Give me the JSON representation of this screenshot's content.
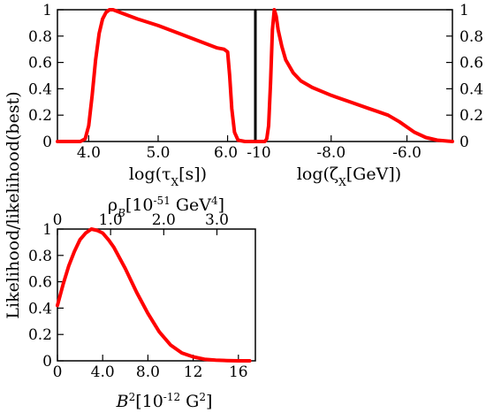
{
  "chart_data": [
    {
      "id": "tau",
      "type": "line",
      "xlabel": "log(τX[s])",
      "ylabel": "Likelihood/likelihood(best)",
      "xlim": [
        3.55,
        6.4
      ],
      "ylim": [
        0,
        1
      ],
      "x_ticks": [
        4.0,
        5.0,
        6.0
      ],
      "x_tick_labels": [
        "4.0",
        "5.0",
        "6.0"
      ],
      "y_ticks": [
        0,
        0.2,
        0.4,
        0.6,
        0.8,
        1
      ],
      "y_tick_labels": [
        "0",
        "0.2",
        "0.4",
        "0.6",
        "0.8",
        "1"
      ],
      "y_tick_side": "left",
      "grid": false,
      "color": "#ff0000",
      "series": [
        {
          "x": [
            3.55,
            3.88,
            3.95,
            4.0,
            4.05,
            4.1,
            4.15,
            4.2,
            4.25,
            4.3,
            4.35,
            4.5,
            4.7,
            5.0,
            5.3,
            5.6,
            5.85,
            5.95,
            6.0,
            6.03,
            6.06,
            6.1,
            6.15,
            6.25,
            6.4
          ],
          "y": [
            0,
            0,
            0.02,
            0.12,
            0.35,
            0.62,
            0.82,
            0.93,
            0.98,
            1.0,
            1.0,
            0.97,
            0.93,
            0.88,
            0.82,
            0.76,
            0.71,
            0.7,
            0.68,
            0.5,
            0.25,
            0.07,
            0.01,
            0,
            0
          ]
        }
      ]
    },
    {
      "id": "zeta",
      "type": "line",
      "xlabel": "log(ζX[GeV])",
      "xlim": [
        -10.0,
        -4.8
      ],
      "ylim": [
        0,
        1
      ],
      "x_ticks": [
        -10.0,
        -8.0,
        -6.0
      ],
      "x_tick_labels": [
        "-10",
        "-8.0",
        "-6.0"
      ],
      "y_ticks": [
        0,
        0.2,
        0.4,
        0.6,
        0.8,
        1
      ],
      "y_tick_labels": [
        "0",
        "0.2",
        "0.4",
        "0.6",
        "0.8",
        "1"
      ],
      "y_tick_side": "right",
      "vertical_line_x": -10.0,
      "grid": false,
      "color": "#ff0000",
      "series": [
        {
          "x": [
            -10.0,
            -9.75,
            -9.7,
            -9.65,
            -9.6,
            -9.55,
            -9.5,
            -9.45,
            -9.4,
            -9.3,
            -9.2,
            -9.0,
            -8.8,
            -8.5,
            -8.0,
            -7.5,
            -7.0,
            -6.7,
            -6.5,
            -6.2,
            -6.0,
            -5.8,
            -5.5,
            -5.2,
            -4.8
          ],
          "y": [
            0,
            0,
            0.02,
            0.12,
            0.45,
            0.85,
            1.0,
            0.95,
            0.85,
            0.72,
            0.62,
            0.52,
            0.46,
            0.41,
            0.35,
            0.3,
            0.25,
            0.22,
            0.2,
            0.15,
            0.11,
            0.07,
            0.03,
            0.01,
            0
          ]
        }
      ]
    },
    {
      "id": "b2",
      "type": "line",
      "xlabel": "B2[10-12 G2]",
      "top_xlabel": "ρB[10-51 GeV4]",
      "xlim": [
        0,
        17.5
      ],
      "ylim": [
        0,
        1
      ],
      "x_ticks": [
        0,
        4,
        8,
        12,
        16
      ],
      "x_tick_labels": [
        "0",
        "4.0",
        "8.0",
        "12",
        "16"
      ],
      "top_x_ticks": [
        0,
        4.7,
        9.4,
        14.1
      ],
      "top_x_tick_labels": [
        "0",
        "1.0",
        "2.0",
        "3.0"
      ],
      "y_ticks": [
        0,
        0.2,
        0.4,
        0.6,
        0.8,
        1
      ],
      "y_tick_labels": [
        "0",
        "0.2",
        "0.4",
        "0.6",
        "0.8",
        "1"
      ],
      "y_tick_side": "left",
      "grid": false,
      "color": "#ff0000",
      "series": [
        {
          "x": [
            0,
            0.5,
            1,
            1.5,
            2,
            2.5,
            3,
            3.5,
            4,
            4.5,
            5,
            5.5,
            6,
            7,
            8,
            9,
            10,
            11,
            12,
            13,
            14,
            15,
            16,
            17
          ],
          "y": [
            0.42,
            0.58,
            0.72,
            0.83,
            0.92,
            0.97,
            1.0,
            0.99,
            0.97,
            0.92,
            0.86,
            0.78,
            0.7,
            0.52,
            0.36,
            0.22,
            0.12,
            0.06,
            0.03,
            0.012,
            0.005,
            0.002,
            0.0,
            0.0
          ]
        }
      ]
    }
  ],
  "labels": {
    "ylabel": "Likelihood/likelihood(best)",
    "tau_x_prefix": "log(τ",
    "tau_x_sub": "X",
    "tau_x_suffix": "[s])",
    "zeta_x_prefix": "log(ζ",
    "zeta_x_sub": "X",
    "zeta_x_suffix": "[GeV])",
    "rho_prefix": "ρ",
    "rho_sub": "B",
    "rho_mid": "[10",
    "rho_exp": "-51",
    "rho_unit": " GeV",
    "rho_unit_exp": "4",
    "rho_suffix": "]",
    "b2_var": "B",
    "b2_exp": "2",
    "b2_mid": "[10",
    "b2_mid_exp": "-12",
    "b2_unit": " G",
    "b2_unit_exp": "2",
    "b2_suffix": "]"
  }
}
